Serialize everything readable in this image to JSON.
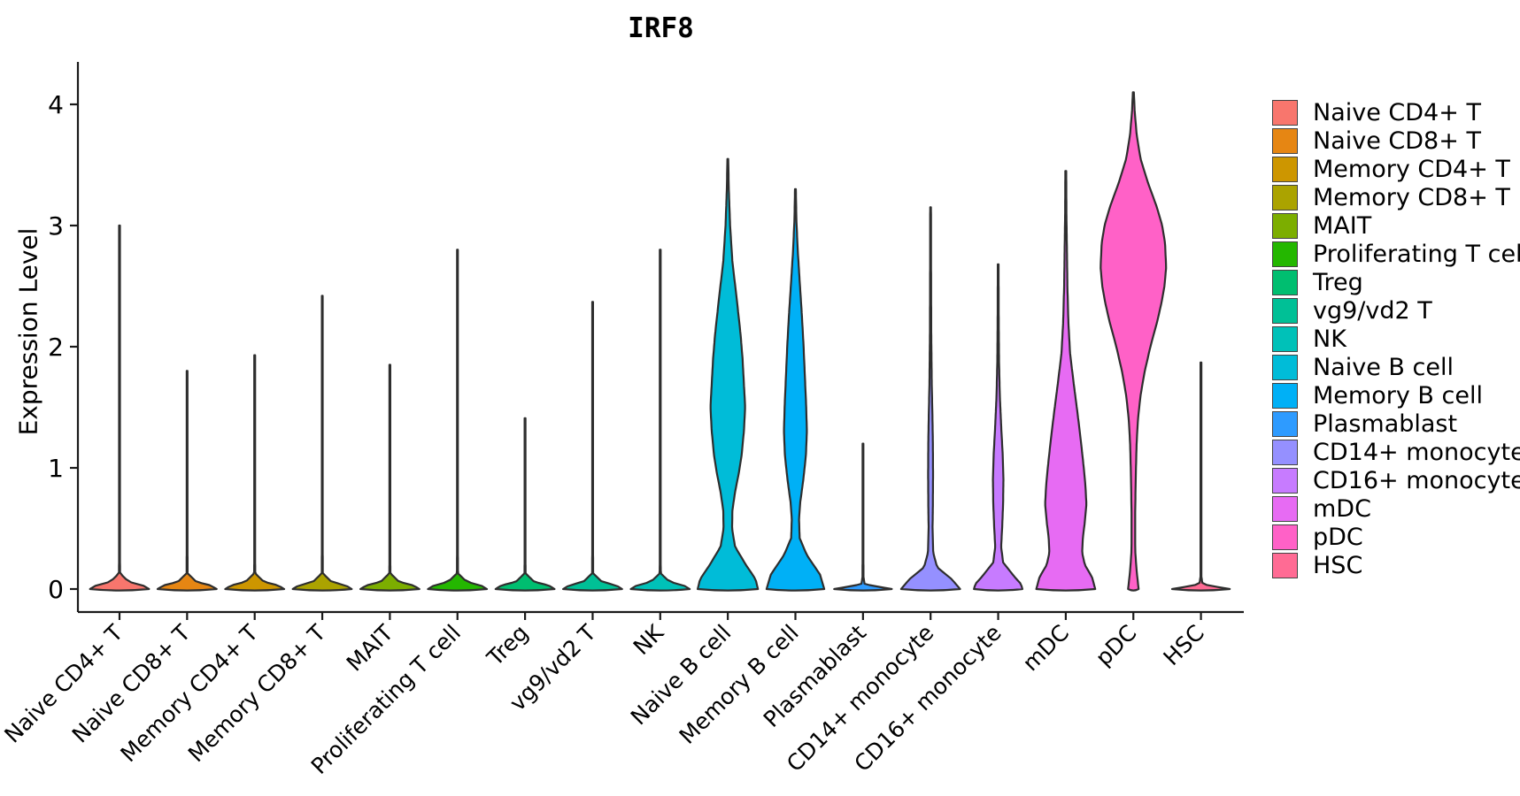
{
  "chart_data": {
    "type": "violin",
    "title": "IRF8",
    "ylabel": "Expression Level",
    "xlabel": "",
    "ylim": [
      0,
      4.35
    ],
    "y_ticks": [
      0,
      1,
      2,
      3,
      4
    ],
    "grid": false,
    "legend_position": "right",
    "outline_color": "#2e2e2e",
    "axis_color": "#1a1a1a",
    "categories": [
      "Naive CD4+ T",
      "Naive CD8+ T",
      "Memory CD4+ T",
      "Memory CD8+ T",
      "MAIT",
      "Proliferating T cell",
      "Treg",
      "vg9/vd2 T",
      "NK",
      "Naive B cell",
      "Memory B cell",
      "Plasmablast",
      "CD14+ monocyte",
      "CD16+ monocyte",
      "mDC",
      "pDC",
      "HSC"
    ],
    "violins": [
      {
        "label": "Naive CD4+ T",
        "color": "#F8766D",
        "max": 3.0,
        "profile": [
          [
            3.0,
            0.013
          ],
          [
            0.3,
            0.013
          ],
          [
            0.13,
            0.016
          ],
          [
            0.06,
            0.28
          ],
          [
            0.03,
            0.72
          ],
          [
            0,
            0.9
          ]
        ]
      },
      {
        "label": "Naive CD8+ T",
        "color": "#E68613",
        "max": 1.8,
        "profile": [
          [
            1.8,
            0.013
          ],
          [
            0.3,
            0.013
          ],
          [
            0.13,
            0.016
          ],
          [
            0.06,
            0.28
          ],
          [
            0.03,
            0.72
          ],
          [
            0,
            0.9
          ]
        ]
      },
      {
        "label": "Memory CD4+ T",
        "color": "#CD9600",
        "max": 1.93,
        "profile": [
          [
            1.93,
            0.013
          ],
          [
            0.3,
            0.013
          ],
          [
            0.13,
            0.016
          ],
          [
            0.06,
            0.28
          ],
          [
            0.03,
            0.72
          ],
          [
            0,
            0.9
          ]
        ]
      },
      {
        "label": "Memory CD8+ T",
        "color": "#ABA300",
        "max": 2.42,
        "profile": [
          [
            2.42,
            0.013
          ],
          [
            0.3,
            0.013
          ],
          [
            0.13,
            0.016
          ],
          [
            0.06,
            0.28
          ],
          [
            0.03,
            0.72
          ],
          [
            0,
            0.9
          ]
        ]
      },
      {
        "label": "MAIT",
        "color": "#7CAE00",
        "max": 1.85,
        "profile": [
          [
            1.85,
            0.013
          ],
          [
            0.3,
            0.013
          ],
          [
            0.13,
            0.016
          ],
          [
            0.06,
            0.28
          ],
          [
            0.03,
            0.72
          ],
          [
            0,
            0.9
          ]
        ]
      },
      {
        "label": "Proliferating T cell",
        "color": "#24B700",
        "max": 2.8,
        "profile": [
          [
            2.8,
            0.013
          ],
          [
            0.3,
            0.013
          ],
          [
            0.13,
            0.016
          ],
          [
            0.06,
            0.28
          ],
          [
            0.03,
            0.72
          ],
          [
            0,
            0.9
          ]
        ]
      },
      {
        "label": "Treg",
        "color": "#00BE70",
        "max": 1.41,
        "profile": [
          [
            1.41,
            0.013
          ],
          [
            0.3,
            0.013
          ],
          [
            0.13,
            0.016
          ],
          [
            0.06,
            0.28
          ],
          [
            0.03,
            0.72
          ],
          [
            0,
            0.9
          ]
        ]
      },
      {
        "label": "vg9/vd2 T",
        "color": "#00C096",
        "max": 2.37,
        "profile": [
          [
            2.37,
            0.013
          ],
          [
            0.3,
            0.013
          ],
          [
            0.13,
            0.016
          ],
          [
            0.06,
            0.28
          ],
          [
            0.03,
            0.72
          ],
          [
            0,
            0.9
          ]
        ]
      },
      {
        "label": "NK",
        "color": "#00C1B8",
        "max": 2.8,
        "profile": [
          [
            2.8,
            0.013
          ],
          [
            0.3,
            0.013
          ],
          [
            0.13,
            0.016
          ],
          [
            0.06,
            0.28
          ],
          [
            0.03,
            0.72
          ],
          [
            0,
            0.9
          ]
        ]
      },
      {
        "label": "Naive B cell",
        "color": "#00BCD8",
        "max": 3.55,
        "profile": [
          [
            3.55,
            0.013
          ],
          [
            3.3,
            0.03
          ],
          [
            3.0,
            0.07
          ],
          [
            2.7,
            0.14
          ],
          [
            2.4,
            0.27
          ],
          [
            2.1,
            0.39
          ],
          [
            1.9,
            0.45
          ],
          [
            1.7,
            0.49
          ],
          [
            1.5,
            0.53
          ],
          [
            1.3,
            0.49
          ],
          [
            1.1,
            0.42
          ],
          [
            0.95,
            0.33
          ],
          [
            0.8,
            0.22
          ],
          [
            0.65,
            0.14
          ],
          [
            0.5,
            0.13
          ],
          [
            0.35,
            0.22
          ],
          [
            0.2,
            0.55
          ],
          [
            0.08,
            0.85
          ],
          [
            0,
            0.92
          ]
        ]
      },
      {
        "label": "Memory B cell",
        "color": "#00B0F6",
        "max": 3.3,
        "profile": [
          [
            3.3,
            0.013
          ],
          [
            3.05,
            0.03
          ],
          [
            2.8,
            0.07
          ],
          [
            2.5,
            0.14
          ],
          [
            2.25,
            0.2
          ],
          [
            2.0,
            0.25
          ],
          [
            1.75,
            0.29
          ],
          [
            1.5,
            0.33
          ],
          [
            1.3,
            0.35
          ],
          [
            1.1,
            0.32
          ],
          [
            0.9,
            0.24
          ],
          [
            0.72,
            0.15
          ],
          [
            0.58,
            0.11
          ],
          [
            0.42,
            0.13
          ],
          [
            0.28,
            0.35
          ],
          [
            0.12,
            0.75
          ],
          [
            0,
            0.88
          ]
        ]
      },
      {
        "label": "Plasmablast",
        "color": "#2E9BFF",
        "max": 1.2,
        "profile": [
          [
            1.2,
            0.013
          ],
          [
            0.3,
            0.013
          ],
          [
            0.1,
            0.014
          ],
          [
            0.04,
            0.05
          ],
          [
            0.015,
            0.55
          ],
          [
            0,
            0.88
          ]
        ]
      },
      {
        "label": "CD14+ monocyte",
        "color": "#9590FF",
        "max": 3.15,
        "profile": [
          [
            3.15,
            0.012
          ],
          [
            2.6,
            0.015
          ],
          [
            2.1,
            0.02
          ],
          [
            1.7,
            0.035
          ],
          [
            1.45,
            0.055
          ],
          [
            1.2,
            0.07
          ],
          [
            0.95,
            0.075
          ],
          [
            0.7,
            0.07
          ],
          [
            0.5,
            0.06
          ],
          [
            0.3,
            0.08
          ],
          [
            0.18,
            0.2
          ],
          [
            0.08,
            0.65
          ],
          [
            0,
            0.9
          ]
        ]
      },
      {
        "label": "CD16+ monocyte",
        "color": "#C77BFF",
        "max": 2.68,
        "profile": [
          [
            2.68,
            0.012
          ],
          [
            2.3,
            0.015
          ],
          [
            1.9,
            0.025
          ],
          [
            1.6,
            0.05
          ],
          [
            1.35,
            0.09
          ],
          [
            1.1,
            0.14
          ],
          [
            0.9,
            0.16
          ],
          [
            0.7,
            0.15
          ],
          [
            0.5,
            0.12
          ],
          [
            0.35,
            0.09
          ],
          [
            0.22,
            0.15
          ],
          [
            0.1,
            0.5
          ],
          [
            0.04,
            0.7
          ],
          [
            0,
            0.74
          ]
        ]
      },
      {
        "label": "mDC",
        "color": "#E76BF3",
        "max": 3.45,
        "profile": [
          [
            3.45,
            0.013
          ],
          [
            3.1,
            0.02
          ],
          [
            2.8,
            0.035
          ],
          [
            2.5,
            0.05
          ],
          [
            2.2,
            0.08
          ],
          [
            1.95,
            0.13
          ],
          [
            1.7,
            0.24
          ],
          [
            1.45,
            0.36
          ],
          [
            1.2,
            0.47
          ],
          [
            1.0,
            0.55
          ],
          [
            0.85,
            0.6
          ],
          [
            0.7,
            0.63
          ],
          [
            0.55,
            0.58
          ],
          [
            0.42,
            0.52
          ],
          [
            0.3,
            0.5
          ],
          [
            0.2,
            0.58
          ],
          [
            0.1,
            0.8
          ],
          [
            0,
            0.9
          ]
        ]
      },
      {
        "label": "pDC",
        "color": "#FF61C7",
        "max": 4.1,
        "profile": [
          [
            4.1,
            0.015
          ],
          [
            3.95,
            0.04
          ],
          [
            3.75,
            0.1
          ],
          [
            3.55,
            0.22
          ],
          [
            3.35,
            0.45
          ],
          [
            3.15,
            0.72
          ],
          [
            3.0,
            0.88
          ],
          [
            2.85,
            0.97
          ],
          [
            2.65,
            1.0
          ],
          [
            2.5,
            0.95
          ],
          [
            2.35,
            0.85
          ],
          [
            2.2,
            0.72
          ],
          [
            2.0,
            0.52
          ],
          [
            1.8,
            0.35
          ],
          [
            1.6,
            0.22
          ],
          [
            1.4,
            0.14
          ],
          [
            1.2,
            0.1
          ],
          [
            1.0,
            0.08
          ],
          [
            0.8,
            0.065
          ],
          [
            0.6,
            0.055
          ],
          [
            0.4,
            0.055
          ],
          [
            0.3,
            0.06
          ],
          [
            0.15,
            0.1
          ],
          [
            0,
            0.16
          ]
        ]
      },
      {
        "label": "HSC",
        "color": "#FF6B94",
        "max": 1.87,
        "profile": [
          [
            1.87,
            0.013
          ],
          [
            0.3,
            0.013
          ],
          [
            0.1,
            0.014
          ],
          [
            0.04,
            0.05
          ],
          [
            0.015,
            0.55
          ],
          [
            0,
            0.88
          ]
        ]
      }
    ]
  }
}
